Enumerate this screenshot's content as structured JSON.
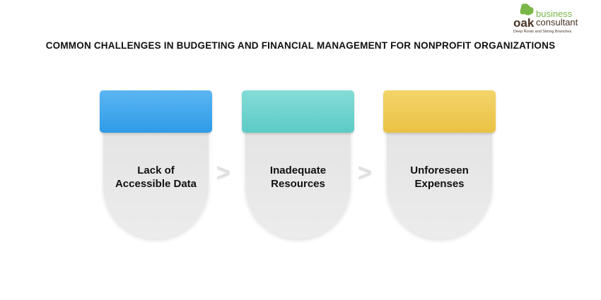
{
  "logo": {
    "word1": "oak",
    "word2": "business",
    "word3": "consultant",
    "tagline": "Deep Roots and Strong Branches"
  },
  "title": "COMMON CHALLENGES IN BUDGETING AND FINANCIAL MANAGEMENT FOR NONPROFIT ORGANIZATIONS",
  "cards": [
    {
      "label": "Lack of Accessible Data",
      "color": "#2f9be8"
    },
    {
      "label": "Inadequate Resources",
      "color": "#64d0cb"
    },
    {
      "label": "Unforeseen Expenses",
      "color": "#eec64c"
    }
  ],
  "chevron_icon": "chevron-right-icon"
}
